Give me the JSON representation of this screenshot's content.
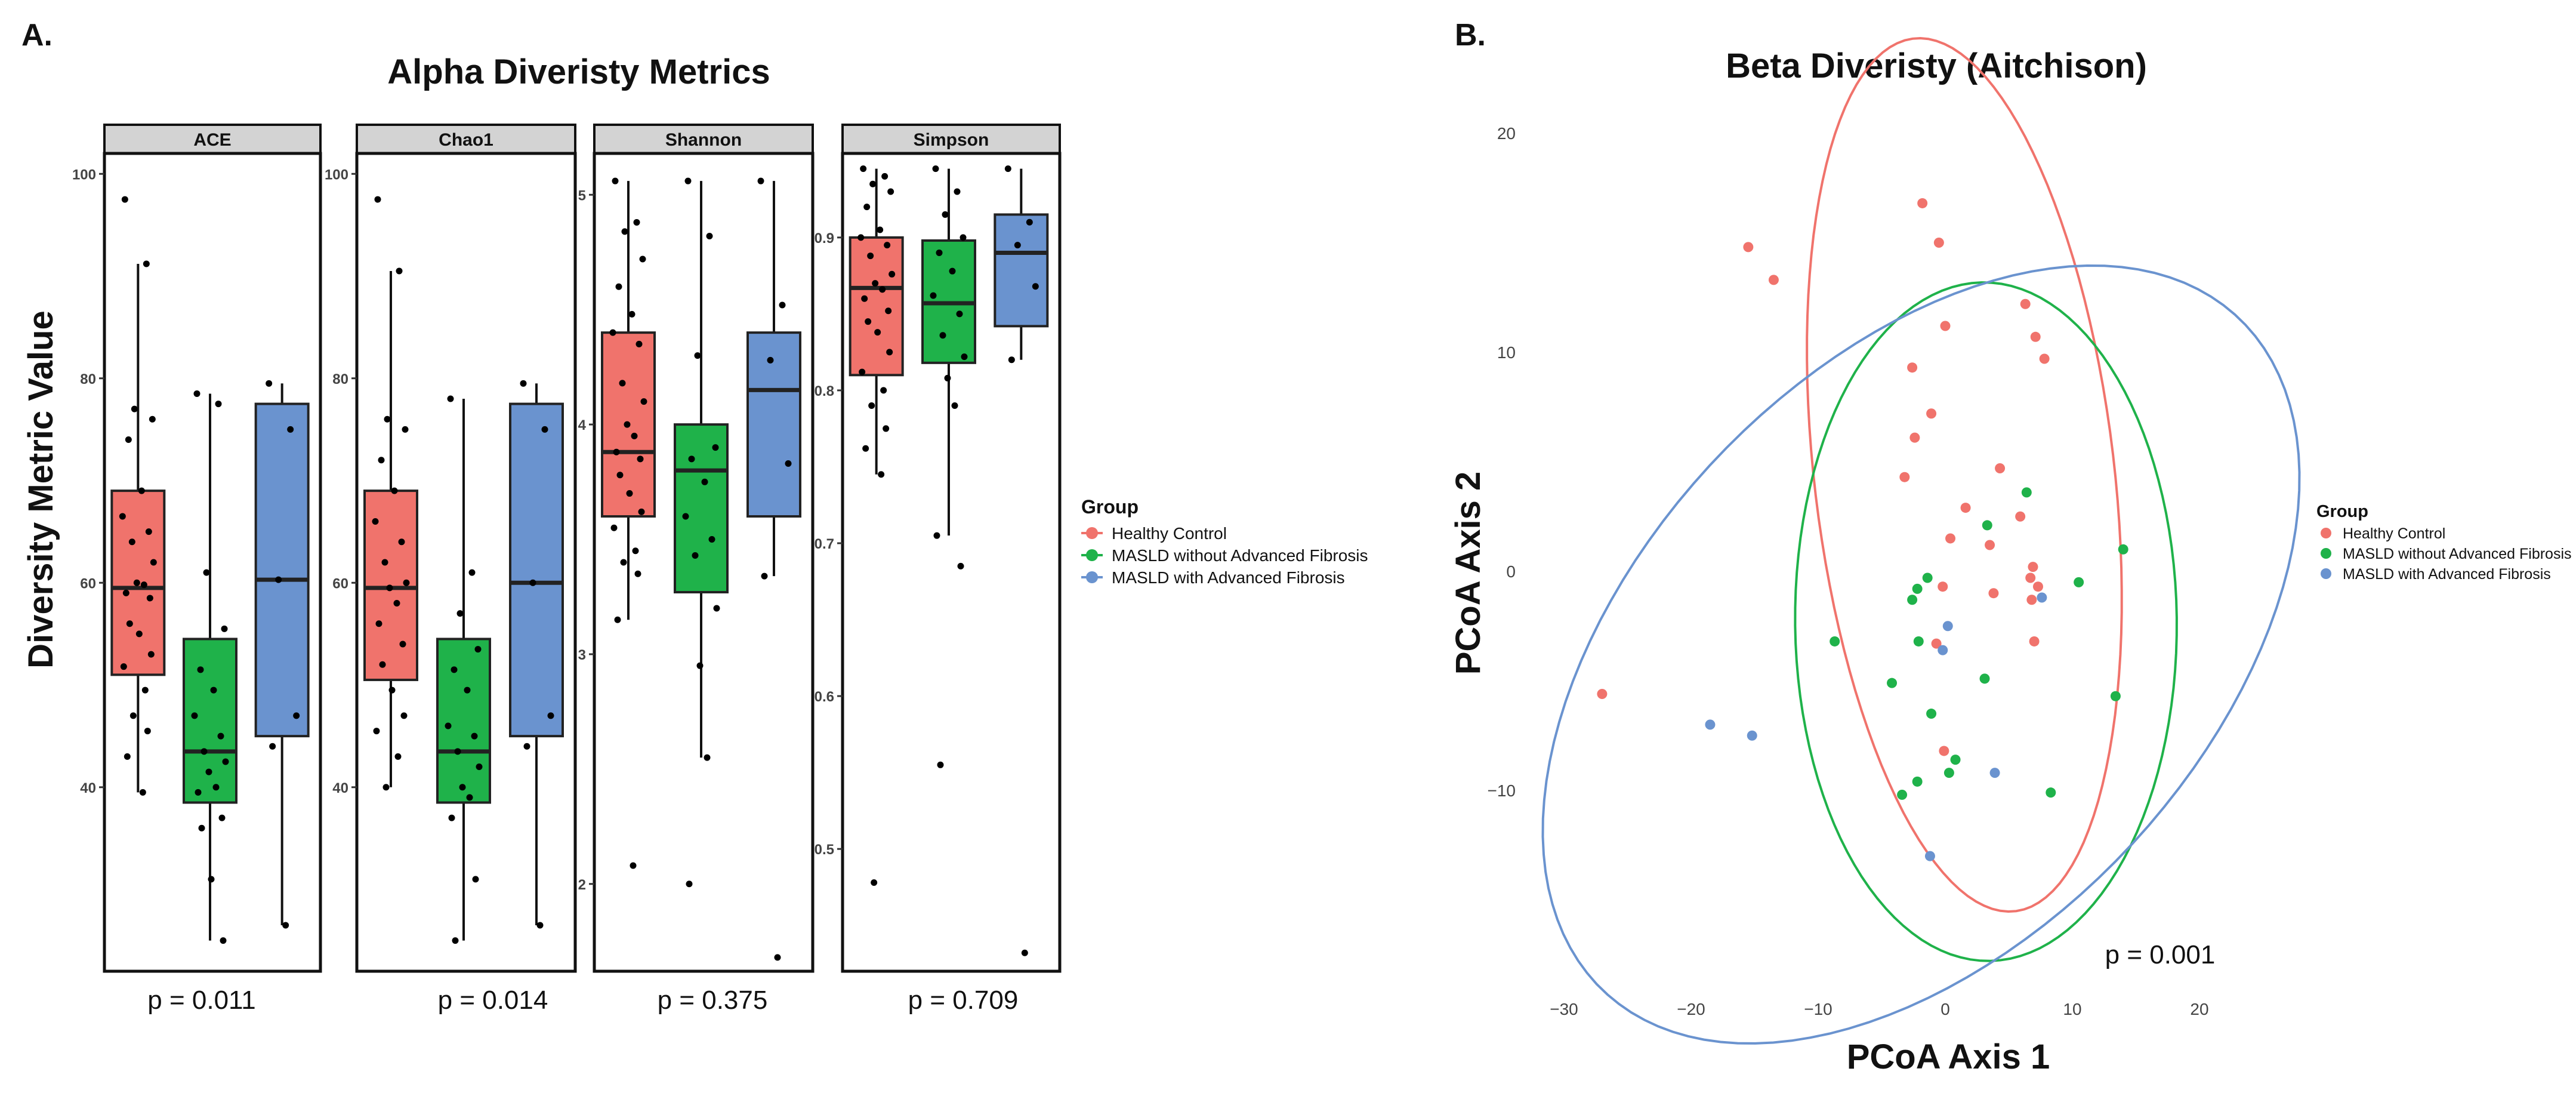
{
  "colors": {
    "healthy": "#F0736C",
    "no_fibrosis": "#1FB24A",
    "fibrosis": "#6A93CF",
    "strip": "#D3D3D3",
    "ink": "#111111",
    "tick": "#444444"
  },
  "panel_a": {
    "label": "A.",
    "title": "Alpha Diveristy Metrics",
    "ylabel": "Diversity Metric Value"
  },
  "panel_b": {
    "label": "B.",
    "title": "Beta Diveristy (Aitchison)"
  },
  "legend": {
    "title": "Group",
    "items": [
      "Healthy Control",
      "MASLD without Advanced Fibrosis",
      "MASLD with Advanced Fibrosis"
    ]
  },
  "chart_data": [
    {
      "type": "boxplot",
      "title": "Alpha Diveristy Metrics",
      "ylabel": "Diversity Metric Value",
      "groups": [
        "Healthy Control",
        "MASLD without Advanced Fibrosis",
        "MASLD with Advanced Fibrosis"
      ],
      "facets": [
        {
          "name": "ACE",
          "p_value": "p = 0.011",
          "ylim": [
            22,
            102
          ],
          "ticks": [
            40,
            60,
            80,
            100
          ],
          "tick_labels": [
            "40",
            "60",
            "80",
            "100"
          ],
          "boxes": [
            {
              "group": "Healthy Control",
              "min": 39.5,
              "q1": 51,
              "median": 59.5,
              "q3": 69,
              "max": 91.2
            },
            {
              "group": "MASLD without Advanced Fibrosis",
              "min": 25,
              "q1": 38.5,
              "median": 43.5,
              "q3": 54.5,
              "max": 78.5
            },
            {
              "group": "MASLD with Advanced Fibrosis",
              "min": 26.5,
              "q1": 45,
              "median": 60.3,
              "q3": 77.5,
              "max": 79.5
            }
          ],
          "points": [
            [
              97.5,
              91.2,
              77,
              76,
              74,
              69,
              66.5,
              65,
              64,
              62,
              60,
              59.8,
              59,
              58.5,
              56,
              55,
              53,
              51.8,
              49.5,
              47,
              45.5,
              43,
              39.5
            ],
            [
              78.5,
              77.5,
              61,
              55.5,
              51.5,
              49.5,
              47,
              45,
              43.5,
              42.5,
              41.5,
              40,
              39.5,
              37,
              36,
              31,
              25
            ],
            [
              79.5,
              75,
              60.3,
              47,
              44,
              26.5
            ]
          ]
        },
        {
          "name": "Chao1",
          "p_value": "p = 0.014",
          "ylim": [
            22,
            102
          ],
          "ticks": [
            40,
            60,
            80,
            100
          ],
          "tick_labels": [
            "40",
            "60",
            "80",
            "100"
          ],
          "boxes": [
            {
              "group": "Healthy Control",
              "min": 40,
              "q1": 50.5,
              "median": 59.5,
              "q3": 69,
              "max": 90.5
            },
            {
              "group": "MASLD without Advanced Fibrosis",
              "min": 25,
              "q1": 38.5,
              "median": 43.5,
              "q3": 54.5,
              "max": 78
            },
            {
              "group": "MASLD with Advanced Fibrosis",
              "min": 26.5,
              "q1": 45,
              "median": 60,
              "q3": 77.5,
              "max": 79.5
            }
          ],
          "points": [
            [
              97.5,
              90.5,
              76,
              75,
              72,
              69,
              66,
              64,
              62,
              60,
              59.5,
              58,
              56,
              54,
              52,
              49.5,
              47,
              45.5,
              43,
              40
            ],
            [
              78,
              61,
              57,
              53.5,
              51.5,
              49.5,
              46,
              45,
              43.5,
              42,
              40,
              39,
              37,
              31,
              25
            ],
            [
              79.5,
              75,
              60,
              47,
              44,
              26.5
            ]
          ]
        },
        {
          "name": "Shannon",
          "p_value": "p = 0.375",
          "ylim": [
            1.62,
            5.18
          ],
          "ticks": [
            2,
            3,
            4,
            5
          ],
          "tick_labels": [
            "2",
            "3",
            "4",
            "5"
          ],
          "boxes": [
            {
              "group": "Healthy Control",
              "min": 3.15,
              "q1": 3.6,
              "median": 3.88,
              "q3": 4.4,
              "max": 5.06
            },
            {
              "group": "MASLD without Advanced Fibrosis",
              "min": 2.55,
              "q1": 3.27,
              "median": 3.8,
              "q3": 4.0,
              "max": 5.06
            },
            {
              "group": "MASLD with Advanced Fibrosis",
              "min": 3.34,
              "q1": 3.6,
              "median": 4.15,
              "q3": 4.4,
              "max": 5.06
            }
          ],
          "points": [
            [
              5.06,
              4.88,
              4.84,
              4.72,
              4.6,
              4.48,
              4.4,
              4.35,
              4.18,
              4.1,
              4.0,
              3.95,
              3.88,
              3.85,
              3.78,
              3.7,
              3.62,
              3.55,
              3.45,
              3.4,
              3.35,
              3.15,
              2.08
            ],
            [
              5.06,
              4.82,
              4.3,
              3.9,
              3.85,
              3.75,
              3.6,
              3.5,
              3.43,
              3.2,
              2.95,
              2.55,
              2.0
            ],
            [
              5.06,
              4.52,
              4.28,
              3.83,
              3.34,
              1.68
            ]
          ]
        },
        {
          "name": "Simpson",
          "p_value": "p = 0.709",
          "ylim": [
            0.42,
            0.955
          ],
          "ticks": [
            0.5,
            0.6,
            0.7,
            0.8,
            0.9
          ],
          "tick_labels": [
            "0.5",
            "0.6",
            "0.7",
            "0.8",
            "0.9"
          ],
          "boxes": [
            {
              "group": "Healthy Control",
              "min": 0.745,
              "q1": 0.81,
              "median": 0.867,
              "q3": 0.9,
              "max": 0.945
            },
            {
              "group": "MASLD without Advanced Fibrosis",
              "min": 0.705,
              "q1": 0.818,
              "median": 0.857,
              "q3": 0.898,
              "max": 0.945
            },
            {
              "group": "MASLD with Advanced Fibrosis",
              "min": 0.82,
              "q1": 0.842,
              "median": 0.89,
              "q3": 0.915,
              "max": 0.945
            }
          ],
          "points": [
            [
              0.945,
              0.94,
              0.935,
              0.93,
              0.92,
              0.905,
              0.9,
              0.895,
              0.888,
              0.876,
              0.87,
              0.866,
              0.86,
              0.852,
              0.845,
              0.838,
              0.825,
              0.812,
              0.8,
              0.79,
              0.775,
              0.762,
              0.745,
              0.478
            ],
            [
              0.945,
              0.93,
              0.915,
              0.9,
              0.89,
              0.878,
              0.862,
              0.85,
              0.836,
              0.822,
              0.808,
              0.79,
              0.705,
              0.685,
              0.555
            ],
            [
              0.945,
              0.91,
              0.895,
              0.868,
              0.82,
              0.432
            ]
          ]
        }
      ]
    },
    {
      "type": "scatter",
      "title": "Beta Diveristy (Aitchison)",
      "xlabel": "PCoA Axis 1",
      "ylabel": "PCoA Axis 2",
      "xlim": [
        -31,
        23
      ],
      "ylim": [
        -17,
        21
      ],
      "xticks": [
        -30,
        -20,
        -10,
        0,
        10,
        20
      ],
      "xtick_labels": [
        "−30",
        "−20",
        "−10",
        "0",
        "10",
        "20"
      ],
      "yticks": [
        -10,
        0,
        10,
        20
      ],
      "ytick_labels": [
        "−10",
        "0",
        "10",
        "20"
      ],
      "p_value": "p = 0.001",
      "groups": [
        "Healthy Control",
        "MASLD without Advanced Fibrosis",
        "MASLD with Advanced Fibrosis"
      ],
      "points": [
        [
          [
            -15.5,
            14.8
          ],
          [
            -13.5,
            13.3
          ],
          [
            -1.8,
            16.8
          ],
          [
            -0.5,
            15
          ],
          [
            0,
            11.2
          ],
          [
            6.3,
            12.2
          ],
          [
            7.1,
            10.7
          ],
          [
            7.8,
            9.7
          ],
          [
            -2.6,
            9.3
          ],
          [
            -1.1,
            7.2
          ],
          [
            -2.4,
            6.1
          ],
          [
            -3.2,
            4.3
          ],
          [
            4.3,
            4.7
          ],
          [
            1.6,
            2.9
          ],
          [
            5.9,
            2.5
          ],
          [
            0.4,
            1.5
          ],
          [
            3.5,
            1.2
          ],
          [
            -0.2,
            -0.7
          ],
          [
            3.8,
            -1
          ],
          [
            6.9,
            0.2
          ],
          [
            6.7,
            -0.3
          ],
          [
            7.3,
            -0.7
          ],
          [
            6.8,
            -1.3
          ],
          [
            -0.7,
            -3.3
          ],
          [
            7,
            -3.2
          ],
          [
            -27,
            -5.6
          ],
          [
            -0.1,
            -8.2
          ]
        ],
        [
          [
            6.4,
            3.6
          ],
          [
            3.3,
            2.1
          ],
          [
            14,
            1
          ],
          [
            10.5,
            -0.5
          ],
          [
            -2.2,
            -0.8
          ],
          [
            -2.6,
            -1.3
          ],
          [
            -1.4,
            -0.3
          ],
          [
            -8.7,
            -3.2
          ],
          [
            -2.1,
            -3.2
          ],
          [
            -4.2,
            -5.1
          ],
          [
            3.1,
            -4.9
          ],
          [
            13.4,
            -5.7
          ],
          [
            -1.1,
            -6.5
          ],
          [
            0.8,
            -8.6
          ],
          [
            0.3,
            -9.2
          ],
          [
            -2.2,
            -9.6
          ],
          [
            -3.4,
            -10.2
          ],
          [
            8.3,
            -10.1
          ]
        ],
        [
          [
            0.2,
            -2.5
          ],
          [
            -0.2,
            -3.6
          ],
          [
            7.6,
            -1.2
          ],
          [
            -18.5,
            -7
          ],
          [
            -15.2,
            -7.5
          ],
          [
            3.9,
            -9.2
          ],
          [
            -1.2,
            -13
          ]
        ]
      ],
      "ellipses": [
        {
          "group": "Healthy Control",
          "center": [
            1.5,
            4.4
          ],
          "semi_major": 20.4,
          "semi_minor": 11.6,
          "angle_deg": 105
        },
        {
          "group": "MASLD without Advanced Fibrosis",
          "center": [
            3.2,
            -2.3
          ],
          "semi_major": 15.5,
          "semi_minor": 15.0,
          "angle_deg": 100
        },
        {
          "group": "MASLD with Advanced Fibrosis",
          "center": [
            -1.9,
            -3.8
          ],
          "semi_major": 31.2,
          "semi_minor": 15.1,
          "angle_deg": 20
        }
      ]
    }
  ]
}
